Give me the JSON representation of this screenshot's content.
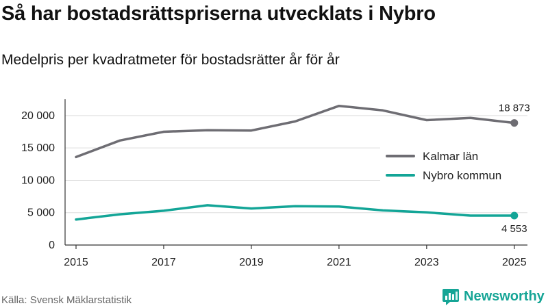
{
  "header": {
    "title": "Så har bostadsrättspriserna utvecklats i Nybro",
    "subtitle": "Medelpris per kvadratmeter för bostadsrätter år för år"
  },
  "footer": {
    "source": "Källa: Svensk Mäklarstatistik",
    "brand": "Newsworthy",
    "brand_icon": "newsworthy-logo-icon"
  },
  "colors": {
    "kalmar": "#6e6d73",
    "nybro": "#13a597",
    "axis": "#333333",
    "grid": "#dddddd",
    "brand": "#16a596"
  },
  "chart_data": {
    "type": "line",
    "x": [
      2015,
      2016,
      2017,
      2018,
      2019,
      2020,
      2021,
      2022,
      2023,
      2024,
      2025
    ],
    "xticks": [
      "2015",
      "2017",
      "2019",
      "2021",
      "2023",
      "2025"
    ],
    "yticks": [
      "0",
      "5 000",
      "10 000",
      "15 000",
      "20 000"
    ],
    "ylim": [
      0,
      22000
    ],
    "xlim": [
      2014.75,
      2025.3
    ],
    "legend_position": "right",
    "series": [
      {
        "name": "Kalmar län",
        "color": "#6e6d73",
        "values": [
          13600,
          16150,
          17500,
          17750,
          17700,
          19100,
          21500,
          20800,
          19300,
          19650,
          18873
        ],
        "end_label": "18 873"
      },
      {
        "name": "Nybro kommun",
        "color": "#13a597",
        "values": [
          3950,
          4750,
          5300,
          6150,
          5650,
          6000,
          5950,
          5350,
          5050,
          4550,
          4553
        ],
        "end_label": "4 553"
      }
    ]
  }
}
